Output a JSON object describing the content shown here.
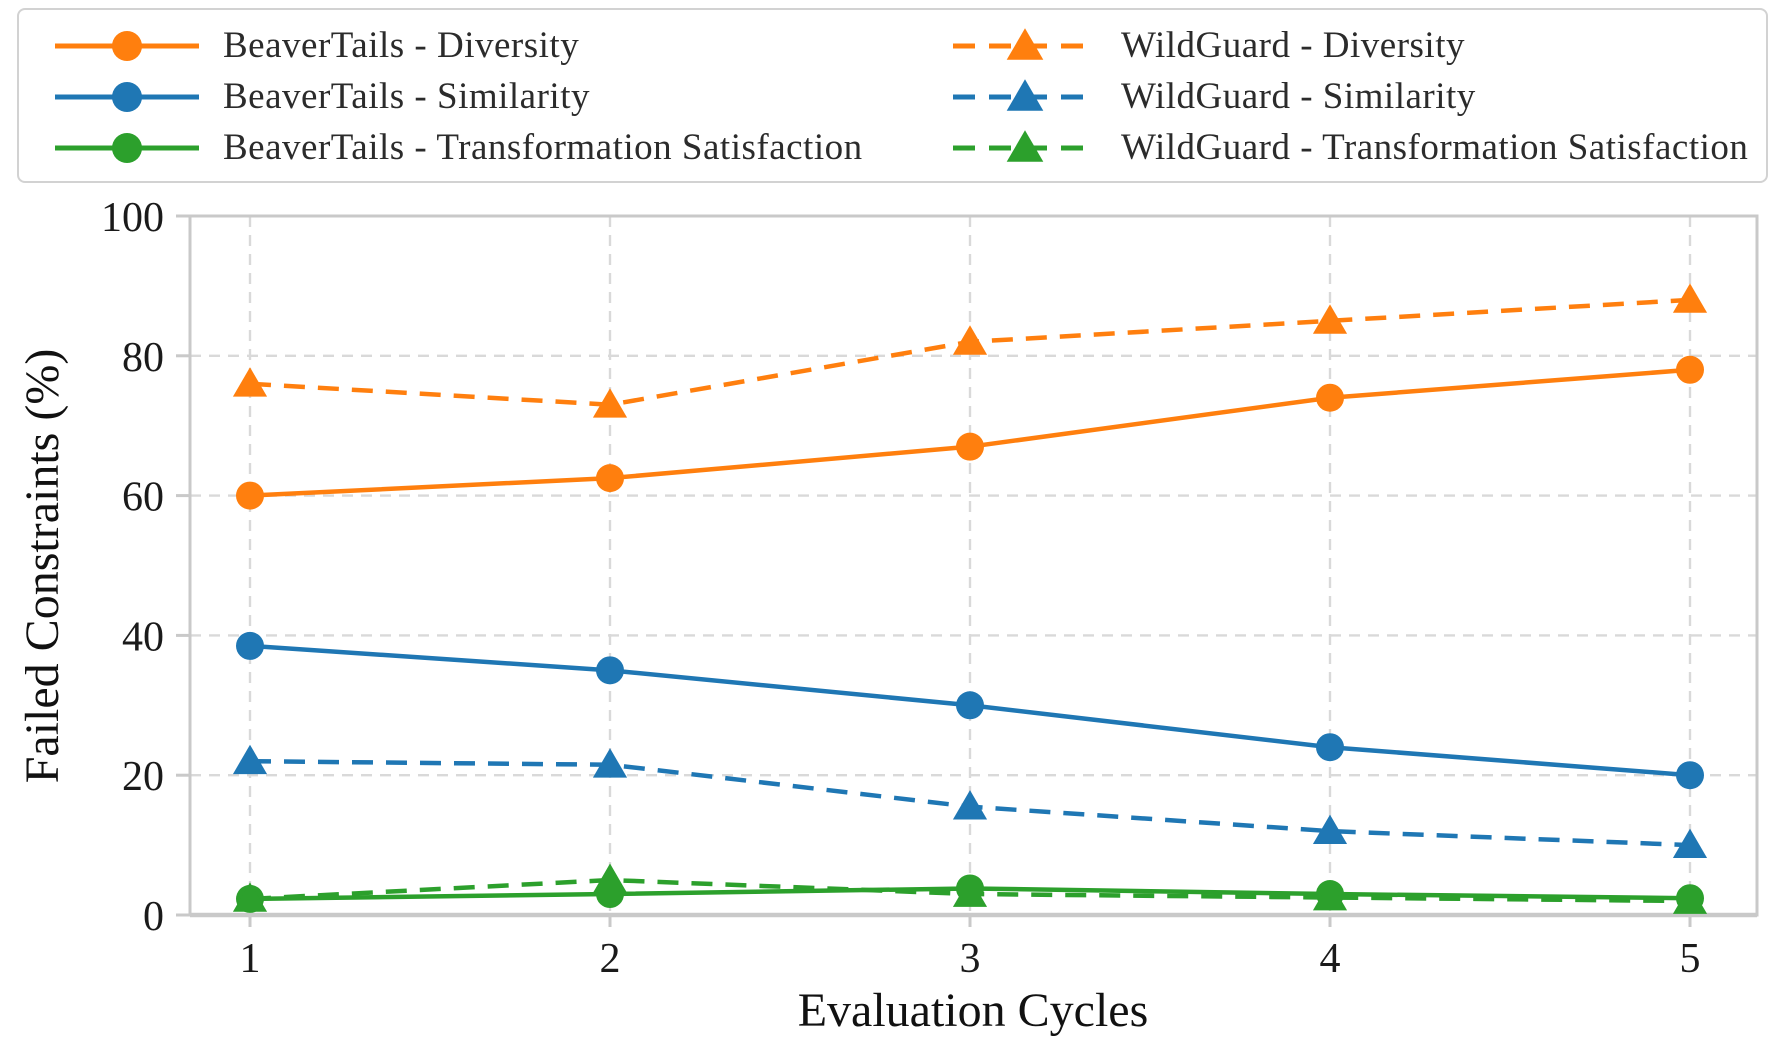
{
  "chart_data": {
    "type": "line",
    "title": "",
    "xlabel": "Evaluation Cycles",
    "ylabel": "Failed Constraints (%)",
    "x": [
      1,
      2,
      3,
      4,
      5
    ],
    "xlim": [
      1,
      5
    ],
    "ylim": [
      0,
      100
    ],
    "yticks": [
      0,
      20,
      40,
      60,
      80,
      100
    ],
    "grid": true,
    "grid_style": "dashed",
    "legend_position": "top",
    "legend_columns": 2,
    "colors": {
      "diversity_orange": "#ff7f0e",
      "similarity_blue": "#1f77b4",
      "transformation_green": "#2ca02c",
      "gridline_gray": "#d9d9d9",
      "spine_gray": "#c9c9c9"
    },
    "series": [
      {
        "name": "BeaverTails - Diversity",
        "color": "#ff7f0e",
        "line_style": "solid",
        "marker": "circle",
        "values": [
          60,
          62.5,
          67,
          74,
          78
        ]
      },
      {
        "name": "BeaverTails - Similarity",
        "color": "#1f77b4",
        "line_style": "solid",
        "marker": "circle",
        "values": [
          38.5,
          35,
          30,
          24,
          20
        ]
      },
      {
        "name": "BeaverTails - Transformation Satisfaction",
        "color": "#2ca02c",
        "line_style": "solid",
        "marker": "circle",
        "values": [
          2.3,
          3,
          3.8,
          3,
          2.4
        ]
      },
      {
        "name": "WildGuard - Diversity",
        "color": "#ff7f0e",
        "line_style": "dashed",
        "marker": "triangle",
        "values": [
          76,
          73,
          82,
          85,
          88
        ]
      },
      {
        "name": "WildGuard - Similarity",
        "color": "#1f77b4",
        "line_style": "dashed",
        "marker": "triangle",
        "values": [
          22,
          21.5,
          15.5,
          12,
          10
        ]
      },
      {
        "name": "WildGuard - Transformation Satisfaction",
        "color": "#2ca02c",
        "line_style": "dashed",
        "marker": "triangle",
        "values": [
          2.3,
          5,
          3,
          2.5,
          2
        ]
      }
    ]
  }
}
